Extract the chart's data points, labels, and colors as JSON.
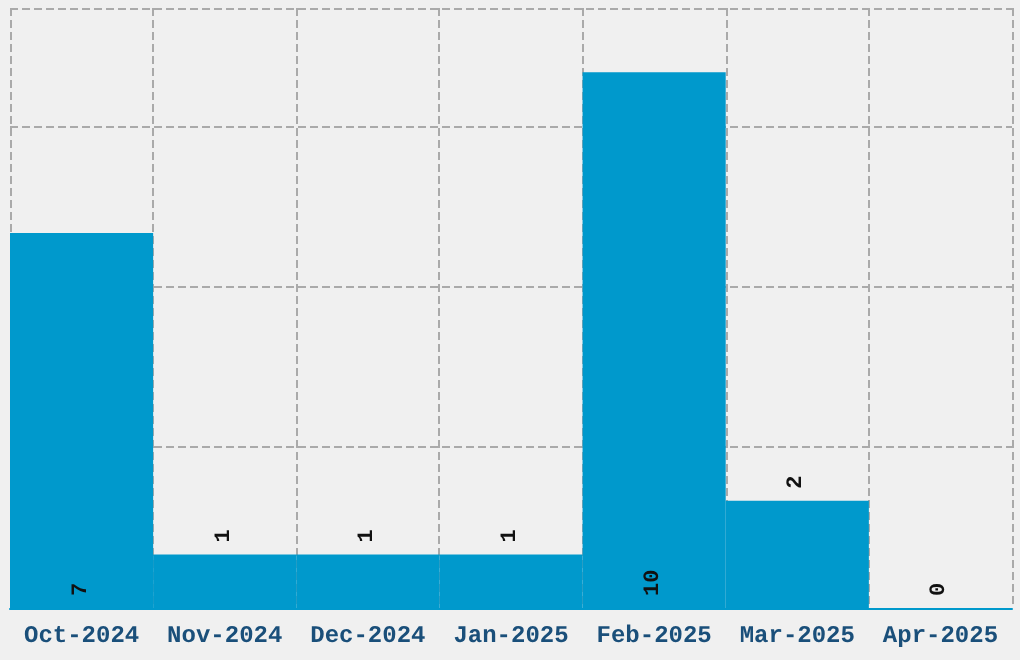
{
  "chart_data": {
    "type": "bar",
    "categories": [
      "Oct-2024",
      "Nov-2024",
      "Dec-2024",
      "Jan-2025",
      "Feb-2025",
      "Mar-2025",
      "Apr-2025"
    ],
    "values": [
      7,
      1,
      1,
      1,
      10,
      2,
      0
    ],
    "color": "#0099cc",
    "data_labels": true,
    "grid": true,
    "tick_labels": "x"
  }
}
